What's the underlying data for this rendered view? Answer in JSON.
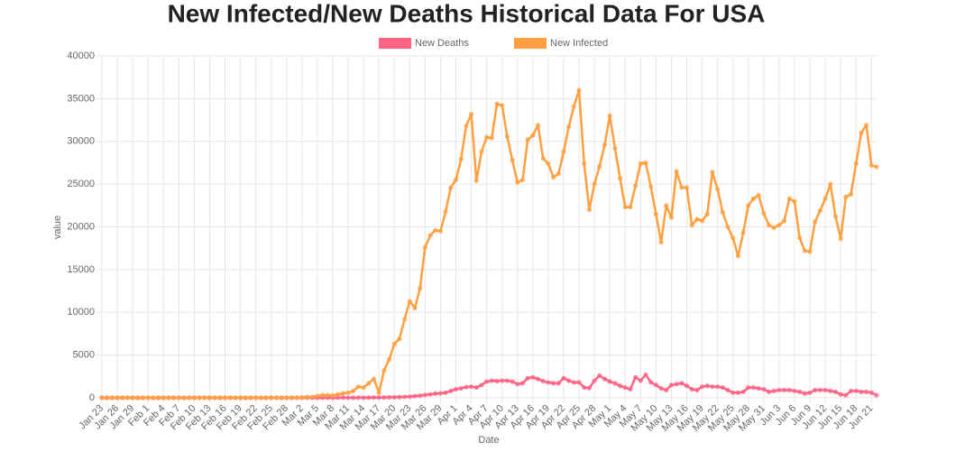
{
  "chart_data": {
    "type": "line",
    "title": "New Infected/New Deaths Historical Data For USA",
    "x_label": "Date",
    "y_label": "value",
    "categories": [
      "Jan 23",
      null,
      null,
      "Jan 26",
      null,
      null,
      "Jan 29",
      null,
      null,
      "Feb 1",
      null,
      null,
      "Feb 4",
      null,
      null,
      "Feb 7",
      null,
      null,
      "Feb 10",
      null,
      null,
      "Feb 13",
      null,
      null,
      "Feb 16",
      null,
      null,
      "Feb 19",
      null,
      null,
      "Feb 22",
      null,
      null,
      "Feb 25",
      null,
      null,
      "Feb 28",
      null,
      null,
      "Mar 2",
      null,
      null,
      "Mar 5",
      null,
      null,
      "Mar 8",
      null,
      null,
      "Mar 11",
      null,
      null,
      "Mar 14",
      null,
      null,
      "Mar 17",
      null,
      null,
      "Mar 20",
      null,
      null,
      "Mar 23",
      null,
      null,
      "Mar 26",
      null,
      null,
      "Mar 29",
      null,
      null,
      "Apr 1",
      null,
      null,
      "Apr 4",
      null,
      null,
      "Apr 7",
      null,
      null,
      "Apr 10",
      null,
      null,
      "Apr 13",
      null,
      null,
      "Apr 16",
      null,
      null,
      "Apr 19",
      null,
      null,
      "Apr 22",
      null,
      null,
      "Apr 25",
      null,
      null,
      "Apr 28",
      null,
      null,
      "May 1",
      null,
      null,
      "May 4",
      null,
      null,
      "May 7",
      null,
      null,
      "May 10",
      null,
      null,
      "May 13",
      null,
      null,
      "May 16",
      null,
      null,
      "May 19",
      null,
      null,
      "May 22",
      null,
      null,
      "May 25",
      null,
      null,
      "May 28",
      null,
      null,
      "May 31",
      null,
      null,
      "Jun 3",
      null,
      null,
      "Jun 6",
      null,
      null,
      "Jun 9",
      null,
      null,
      "Jun 12",
      null,
      null,
      "Jun 15",
      null,
      null,
      "Jun 18",
      null,
      null,
      "Jun 21",
      null
    ],
    "series": [
      {
        "name": "New Deaths",
        "color": "#ff6384",
        "values": [
          0,
          0,
          0,
          0,
          0,
          0,
          0,
          0,
          0,
          0,
          0,
          0,
          0,
          0,
          0,
          0,
          0,
          0,
          0,
          0,
          0,
          0,
          0,
          0,
          0,
          0,
          0,
          0,
          0,
          0,
          0,
          0,
          0,
          0,
          0,
          0,
          0,
          0,
          0,
          0,
          1,
          2,
          1,
          2,
          2,
          2,
          4,
          6,
          7,
          10,
          12,
          15,
          20,
          25,
          30,
          40,
          50,
          60,
          80,
          110,
          140,
          200,
          250,
          330,
          400,
          500,
          520,
          600,
          800,
          1000,
          1100,
          1250,
          1300,
          1200,
          1500,
          1900,
          2000,
          1950,
          2000,
          2000,
          1900,
          1600,
          1700,
          2300,
          2400,
          2200,
          1950,
          1800,
          1700,
          1700,
          2300,
          2000,
          1800,
          1800,
          1200,
          1150,
          2000,
          2600,
          2200,
          1900,
          1700,
          1400,
          1200,
          1000,
          2400,
          2000,
          2700,
          1800,
          1500,
          1100,
          900,
          1500,
          1600,
          1700,
          1400,
          1000,
          900,
          1300,
          1400,
          1300,
          1300,
          1200,
          900,
          600,
          600,
          700,
          1200,
          1200,
          1100,
          1000,
          700,
          800,
          900,
          900,
          900,
          800,
          700,
          500,
          600,
          900,
          900,
          900,
          800,
          700,
          400,
          300,
          800,
          800,
          700,
          700,
          600,
          300
        ]
      },
      {
        "name": "New Infected",
        "color": "#ff9f40",
        "values": [
          0,
          0,
          0,
          0,
          0,
          0,
          0,
          0,
          0,
          0,
          0,
          0,
          0,
          0,
          0,
          0,
          0,
          0,
          0,
          0,
          0,
          0,
          0,
          0,
          0,
          0,
          0,
          0,
          0,
          0,
          0,
          0,
          0,
          0,
          0,
          0,
          0,
          0,
          20,
          50,
          80,
          100,
          200,
          300,
          300,
          250,
          400,
          500,
          600,
          800,
          1300,
          1200,
          1700,
          2200,
          600,
          3200,
          4500,
          6300,
          6900,
          9200,
          11300,
          10500,
          12800,
          17600,
          19000,
          19600,
          19500,
          21800,
          24600,
          25500,
          27900,
          31800,
          33200,
          25400,
          28800,
          30500,
          30400,
          34400,
          34200,
          30600,
          27800,
          25200,
          25500,
          30200,
          30700,
          31900,
          28000,
          27400,
          25800,
          26200,
          28800,
          31700,
          34100,
          36000,
          27400,
          22000,
          25000,
          27100,
          29600,
          33000,
          29200,
          25700,
          22300,
          22300,
          24800,
          27400,
          27500,
          24700,
          21500,
          18200,
          22500,
          21100,
          26500,
          24600,
          24600,
          20200,
          20900,
          20700,
          21500,
          26400,
          24400,
          21700,
          20000,
          18700,
          16600,
          19300,
          22500,
          23300,
          23700,
          21600,
          20200,
          19900,
          20200,
          20700,
          23300,
          23000,
          18700,
          17200,
          17100,
          20600,
          21900,
          23300,
          25000,
          21200,
          18600,
          23500,
          23800,
          27400,
          31000,
          31900,
          27200,
          27000
        ]
      }
    ],
    "ylim": [
      0,
      40000
    ],
    "yticks": [
      0,
      5000,
      10000,
      15000,
      20000,
      25000,
      30000,
      35000,
      40000
    ],
    "grid": true,
    "legend": "top"
  }
}
